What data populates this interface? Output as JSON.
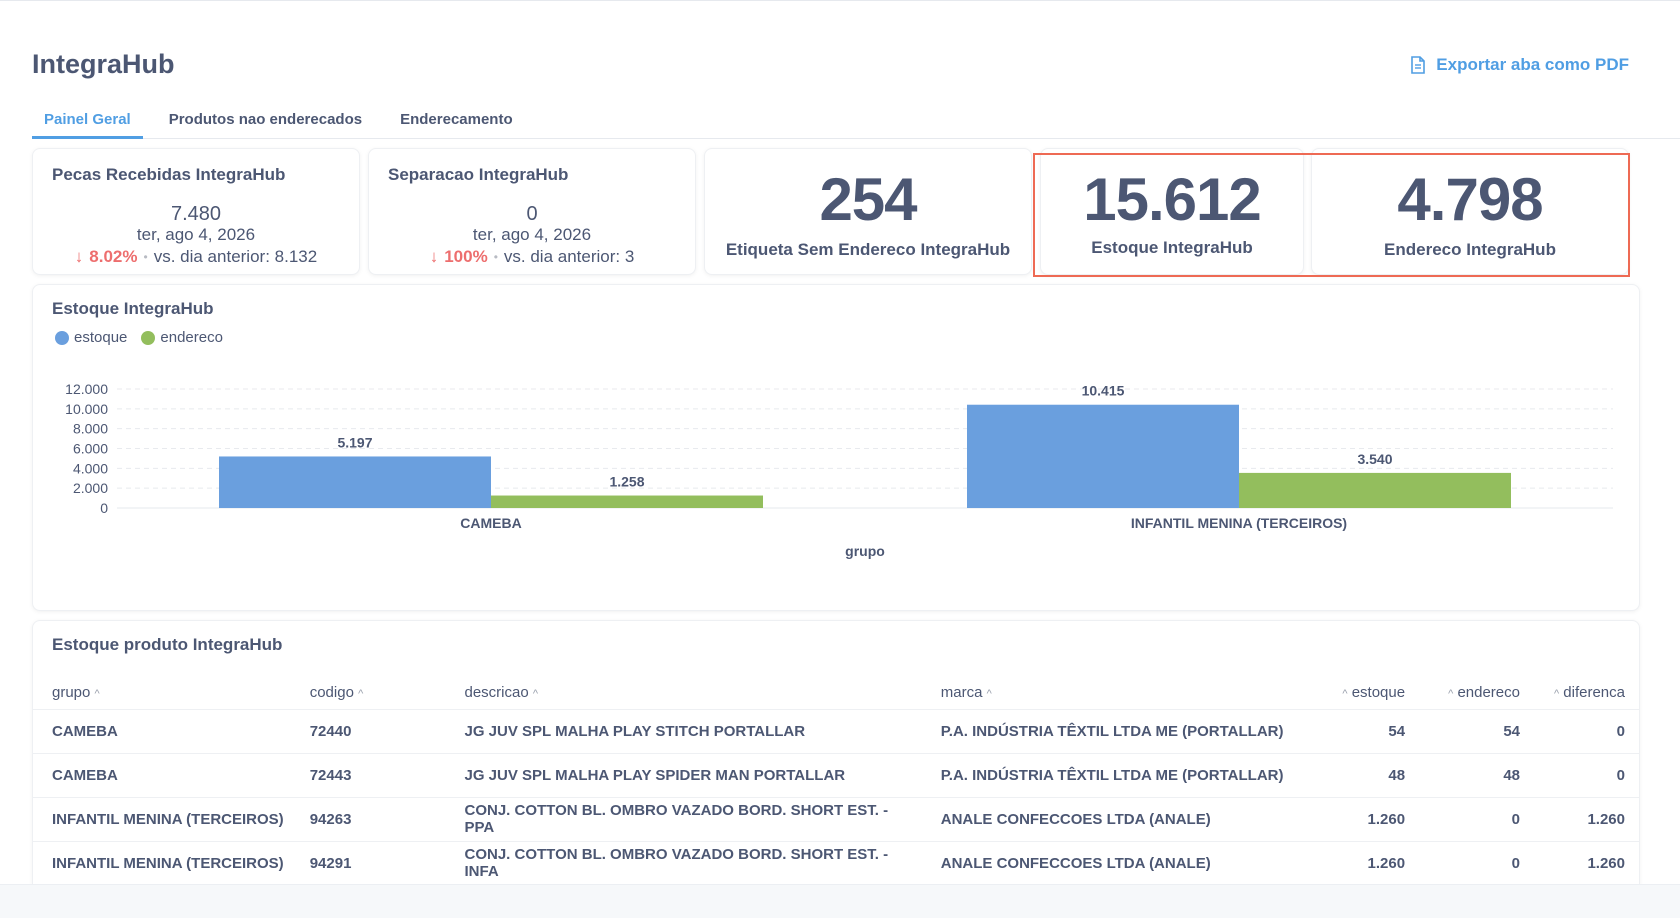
{
  "app": {
    "title": "IntegraHub",
    "export_label": "Exportar aba como PDF"
  },
  "tabs": [
    {
      "label": "Painel Geral",
      "active": true
    },
    {
      "label": "Produtos nao enderecados",
      "active": false
    },
    {
      "label": "Enderecamento",
      "active": false
    }
  ],
  "kpis": {
    "pecas": {
      "title": "Pecas Recebidas IntegraHub",
      "value": "7.480",
      "date": "ter, ago 4, 2026",
      "change": "8.02%",
      "comparison": "vs. dia anterior: 8.132"
    },
    "separacao": {
      "title": "Separacao IntegraHub",
      "value": "0",
      "date": "ter, ago 4, 2026",
      "change": "100%",
      "comparison": "vs. dia anterior: 3"
    },
    "etiqueta": {
      "value": "254",
      "label": "Etiqueta Sem Endereco IntegraHub"
    },
    "estoque": {
      "value": "15.612",
      "label": "Estoque IntegraHub"
    },
    "endereco": {
      "value": "4.798",
      "label": "Endereco IntegraHub"
    }
  },
  "colors": {
    "accent": "#509ee3",
    "estoque": "#6a9fde",
    "endereco": "#93be5d",
    "negative": "#ed6e6e",
    "highlight": "#ee6a54"
  },
  "chart_data": {
    "type": "bar",
    "title": "Estoque IntegraHub",
    "xlabel": "grupo",
    "ylabel": "",
    "categories": [
      "CAMEBA",
      "INFANTIL MENINA (TERCEIROS)"
    ],
    "series": [
      {
        "name": "estoque",
        "values": [
          5197,
          10415
        ],
        "labels": [
          "5.197",
          "10.415"
        ]
      },
      {
        "name": "endereco",
        "values": [
          1258,
          3540
        ],
        "labels": [
          "1.258",
          "3.540"
        ]
      }
    ],
    "ylim": [
      0,
      12000
    ],
    "yticks": [
      0,
      2000,
      4000,
      6000,
      8000,
      10000,
      12000
    ],
    "ytick_labels": [
      "0",
      "2.000",
      "4.000",
      "6.000",
      "8.000",
      "10.000",
      "12.000"
    ],
    "grid": true,
    "legend": "top-left"
  },
  "table": {
    "title": "Estoque produto IntegraHub",
    "columns": [
      "grupo",
      "codigo",
      "descricao",
      "marca",
      "estoque",
      "endereco",
      "diferenca"
    ],
    "rows": [
      [
        "CAMEBA",
        "72440",
        "JG JUV SPL MALHA PLAY STITCH PORTALLAR",
        "P.A. INDÚSTRIA TÊXTIL LTDA ME (PORTALLAR)",
        "54",
        "54",
        "0"
      ],
      [
        "CAMEBA",
        "72443",
        "JG JUV SPL MALHA PLAY SPIDER MAN PORTALLAR",
        "P.A. INDÚSTRIA TÊXTIL LTDA ME (PORTALLAR)",
        "48",
        "48",
        "0"
      ],
      [
        "INFANTIL MENINA (TERCEIROS)",
        "94263",
        "CONJ. COTTON BL. OMBRO VAZADO BORD. SHORT EST. - PPA",
        "ANALE CONFECCOES LTDA (ANALE)",
        "1.260",
        "0",
        "1.260"
      ],
      [
        "INFANTIL MENINA (TERCEIROS)",
        "94291",
        "CONJ. COTTON BL. OMBRO VAZADO BORD. SHORT EST. - INFA",
        "ANALE CONFECCOES LTDA (ANALE)",
        "1.260",
        "0",
        "1.260"
      ]
    ]
  }
}
